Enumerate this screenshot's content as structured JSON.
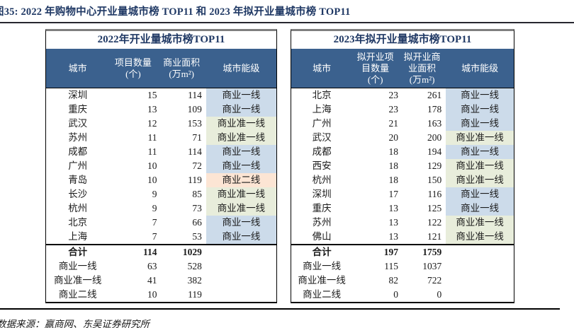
{
  "figure_title": "图35:  2022 年购物中心开业量城市榜 TOP11 和 2023 年拟开业量城市榜 TOP11",
  "source_note": "数据来源：赢商网、东吴证券研究所",
  "colors": {
    "header_bg": "#3b618e",
    "title_text": "#1f3864",
    "tier_blue": "#ccdbea",
    "tier_green": "#e8eddb",
    "tier_peach": "#fce5d4"
  },
  "tier_color_keys": {
    "商业一线": "tier_blue",
    "商业准一线": "tier_green",
    "商业二线": "tier_peach"
  },
  "tables": [
    {
      "title": "2022年开业量城市榜TOP11",
      "columns": [
        "城市",
        "项目数量\n(个)",
        "商业面积\n(万m²)",
        "城市能级"
      ],
      "rows": [
        [
          "深圳",
          "15",
          "114",
          "商业一线"
        ],
        [
          "重庆",
          "13",
          "109",
          "商业一线"
        ],
        [
          "武汉",
          "12",
          "153",
          "商业准一线"
        ],
        [
          "苏州",
          "11",
          "71",
          "商业准一线"
        ],
        [
          "成都",
          "11",
          "114",
          "商业一线"
        ],
        [
          "广州",
          "10",
          "72",
          "商业一线"
        ],
        [
          "青岛",
          "10",
          "119",
          "商业二线"
        ],
        [
          "长沙",
          "9",
          "85",
          "商业准一线"
        ],
        [
          "杭州",
          "9",
          "73",
          "商业准一线"
        ],
        [
          "北京",
          "7",
          "66",
          "商业一线"
        ],
        [
          "上海",
          "7",
          "53",
          "商业一线"
        ]
      ],
      "summary": [
        [
          "合计",
          "114",
          "1029",
          ""
        ],
        [
          "商业一线",
          "63",
          "528",
          ""
        ],
        [
          "商业准一线",
          "41",
          "382",
          ""
        ],
        [
          "商业二线",
          "10",
          "119",
          ""
        ]
      ]
    },
    {
      "title": "2023年拟开业量城市榜TOP11",
      "columns": [
        "城市",
        "拟开业项\n目数量\n(个)",
        "拟开业商\n业面积\n(万m²)",
        "城市能级"
      ],
      "rows": [
        [
          "北京",
          "23",
          "261",
          "商业一线"
        ],
        [
          "上海",
          "23",
          "178",
          "商业一线"
        ],
        [
          "广州",
          "21",
          "163",
          "商业一线"
        ],
        [
          "武汉",
          "20",
          "200",
          "商业准一线"
        ],
        [
          "成都",
          "18",
          "194",
          "商业一线"
        ],
        [
          "西安",
          "18",
          "129",
          "商业准一线"
        ],
        [
          "杭州",
          "18",
          "150",
          "商业准一线"
        ],
        [
          "深圳",
          "17",
          "116",
          "商业一线"
        ],
        [
          "重庆",
          "13",
          "125",
          "商业一线"
        ],
        [
          "苏州",
          "13",
          "122",
          "商业准一线"
        ],
        [
          "佛山",
          "13",
          "121",
          "商业准一线"
        ]
      ],
      "summary": [
        [
          "合计",
          "197",
          "1759",
          ""
        ],
        [
          "商业一线",
          "115",
          "1037",
          ""
        ],
        [
          "商业准一线",
          "82",
          "722",
          ""
        ],
        [
          "商业二线",
          "0",
          "0",
          ""
        ]
      ]
    }
  ]
}
